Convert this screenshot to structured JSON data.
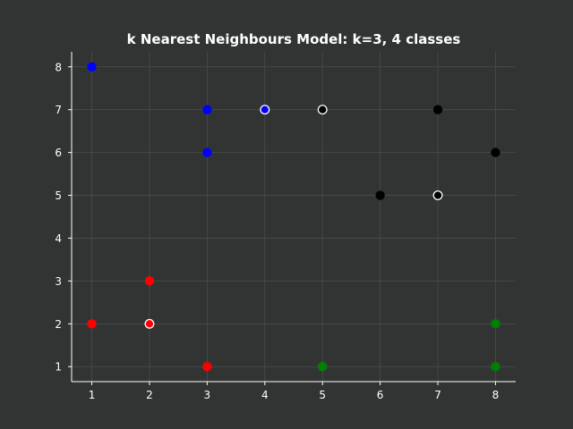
{
  "chart_data": {
    "type": "scatter",
    "title": "k Nearest Neighbours Model: k=3, 4 classes",
    "xlabel": "",
    "ylabel": "",
    "xlim": [
      0.65,
      8.35
    ],
    "ylim": [
      0.65,
      8.35
    ],
    "x_ticks": [
      "1",
      "2",
      "3",
      "4",
      "5",
      "6",
      "7",
      "8"
    ],
    "y_ticks": [
      "1",
      "2",
      "3",
      "4",
      "5",
      "6",
      "7",
      "8"
    ],
    "grid": true,
    "series": [
      {
        "color": "#0000ff",
        "points": [
          {
            "x": 1,
            "y": 8
          },
          {
            "x": 3,
            "y": 7
          },
          {
            "x": 3,
            "y": 6
          },
          {
            "x": 4,
            "y": 7,
            "edge": "#ffffff"
          }
        ]
      },
      {
        "color": "#000000",
        "points": [
          {
            "x": 5,
            "y": 7,
            "edge": "#ffffff"
          },
          {
            "x": 7,
            "y": 7
          },
          {
            "x": 8,
            "y": 6
          },
          {
            "x": 6,
            "y": 5
          },
          {
            "x": 7,
            "y": 5,
            "edge": "#ffffff"
          }
        ]
      },
      {
        "color": "#ff0000",
        "points": [
          {
            "x": 2,
            "y": 3
          },
          {
            "x": 1,
            "y": 2
          },
          {
            "x": 2,
            "y": 2,
            "edge": "#ffffff"
          },
          {
            "x": 3,
            "y": 1
          }
        ]
      },
      {
        "color": "#008000",
        "points": [
          {
            "x": 5,
            "y": 1
          },
          {
            "x": 8,
            "y": 2
          },
          {
            "x": 8,
            "y": 1
          }
        ]
      }
    ],
    "colors": {
      "background": "#323434",
      "axis": "#ffffff",
      "grid": "#4a4d4d",
      "text": "#ffffff"
    }
  }
}
